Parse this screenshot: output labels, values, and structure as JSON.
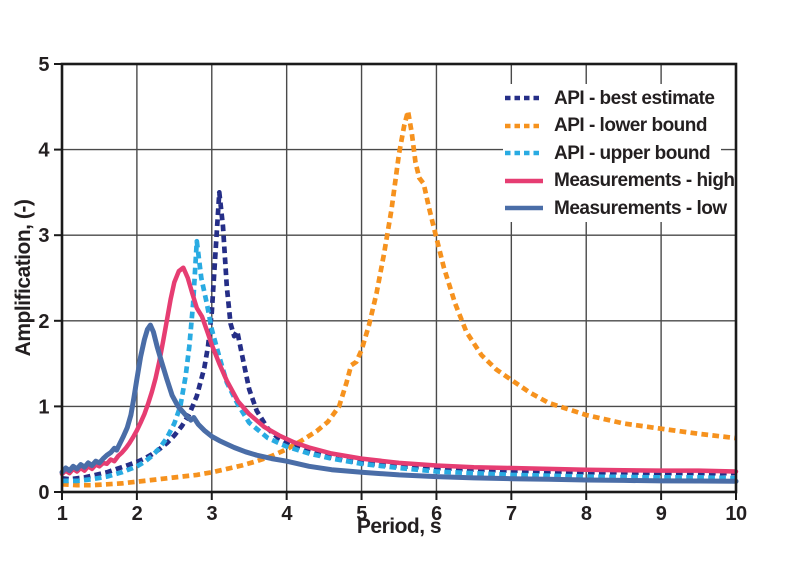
{
  "chart_data": {
    "type": "line",
    "title": "",
    "xlabel": "Period, s",
    "ylabel": "Amplification, (-)",
    "xlim": [
      1,
      10
    ],
    "ylim": [
      0,
      5
    ],
    "xticks": [
      1,
      2,
      3,
      4,
      5,
      6,
      7,
      8,
      9,
      10
    ],
    "yticks": [
      0,
      1,
      2,
      3,
      4,
      5
    ],
    "grid": true,
    "legend_position": "upper-right",
    "frame_color": "#1a1a1a",
    "grid_color": "#4a4a4a",
    "text_color": "#231f20",
    "series": [
      {
        "name": "API - best estimate",
        "color": "#252e87",
        "line_style": "dashed",
        "dash": "6.7 4.3",
        "legend_dash": "5.5 4",
        "width": 4.7,
        "points": [
          [
            1,
            0.16
          ],
          [
            1.1,
            0.15
          ],
          [
            1.2,
            0.16
          ],
          [
            1.3,
            0.17
          ],
          [
            1.4,
            0.19
          ],
          [
            1.5,
            0.21
          ],
          [
            1.6,
            0.23
          ],
          [
            1.7,
            0.26
          ],
          [
            1.8,
            0.29
          ],
          [
            1.9,
            0.32
          ],
          [
            2,
            0.35
          ],
          [
            2.1,
            0.39
          ],
          [
            2.2,
            0.44
          ],
          [
            2.3,
            0.5
          ],
          [
            2.4,
            0.57
          ],
          [
            2.5,
            0.66
          ],
          [
            2.6,
            0.77
          ],
          [
            2.7,
            0.91
          ],
          [
            2.8,
            1.12
          ],
          [
            2.9,
            1.45
          ],
          [
            2.95,
            1.7
          ],
          [
            3,
            2.1
          ],
          [
            3.05,
            2.8
          ],
          [
            3.1,
            3.5
          ],
          [
            3.15,
            3.1
          ],
          [
            3.2,
            2.4
          ],
          [
            3.25,
            1.97
          ],
          [
            3.3,
            1.82
          ],
          [
            3.34,
            1.88
          ],
          [
            3.4,
            1.62
          ],
          [
            3.5,
            1.2
          ],
          [
            3.6,
            0.95
          ],
          [
            3.75,
            0.74
          ],
          [
            3.9,
            0.62
          ],
          [
            4,
            0.57
          ],
          [
            4.25,
            0.48
          ],
          [
            4.5,
            0.42
          ],
          [
            4.75,
            0.37
          ],
          [
            5,
            0.34
          ],
          [
            5.25,
            0.32
          ],
          [
            5.5,
            0.3
          ],
          [
            6,
            0.28
          ],
          [
            6.5,
            0.26
          ],
          [
            7,
            0.25
          ],
          [
            7.5,
            0.24
          ],
          [
            8,
            0.23
          ],
          [
            8.5,
            0.23
          ],
          [
            9,
            0.22
          ],
          [
            9.5,
            0.22
          ],
          [
            10,
            0.22
          ]
        ]
      },
      {
        "name": "API - lower bound",
        "color": "#f6921e",
        "line_style": "dashed",
        "dash": "6.7 4.3",
        "legend_dash": "5.5 4",
        "width": 4.7,
        "points": [
          [
            1,
            0.09
          ],
          [
            1.2,
            0.08
          ],
          [
            1.4,
            0.08
          ],
          [
            1.6,
            0.09
          ],
          [
            1.8,
            0.1
          ],
          [
            2,
            0.12
          ],
          [
            2.2,
            0.14
          ],
          [
            2.4,
            0.16
          ],
          [
            2.6,
            0.18
          ],
          [
            2.8,
            0.2
          ],
          [
            3,
            0.23
          ],
          [
            3.2,
            0.27
          ],
          [
            3.4,
            0.31
          ],
          [
            3.6,
            0.36
          ],
          [
            3.8,
            0.42
          ],
          [
            4,
            0.5
          ],
          [
            4.2,
            0.6
          ],
          [
            4.4,
            0.71
          ],
          [
            4.55,
            0.82
          ],
          [
            4.7,
            1.0
          ],
          [
            4.8,
            1.28
          ],
          [
            4.86,
            1.48
          ],
          [
            4.93,
            1.52
          ],
          [
            5,
            1.66
          ],
          [
            5.1,
            1.95
          ],
          [
            5.2,
            2.32
          ],
          [
            5.3,
            2.78
          ],
          [
            5.4,
            3.3
          ],
          [
            5.5,
            3.95
          ],
          [
            5.57,
            4.28
          ],
          [
            5.62,
            4.45
          ],
          [
            5.67,
            4.2
          ],
          [
            5.72,
            3.85
          ],
          [
            5.77,
            3.67
          ],
          [
            5.83,
            3.6
          ],
          [
            5.9,
            3.32
          ],
          [
            6,
            2.97
          ],
          [
            6.1,
            2.62
          ],
          [
            6.25,
            2.2
          ],
          [
            6.4,
            1.87
          ],
          [
            6.6,
            1.6
          ],
          [
            6.8,
            1.43
          ],
          [
            7,
            1.31
          ],
          [
            7.25,
            1.16
          ],
          [
            7.5,
            1.04
          ],
          [
            7.75,
            0.97
          ],
          [
            8,
            0.9
          ],
          [
            8.5,
            0.8
          ],
          [
            9,
            0.74
          ],
          [
            9.5,
            0.68
          ],
          [
            10,
            0.63
          ]
        ]
      },
      {
        "name": "API - upper bound",
        "color": "#29abe2",
        "line_style": "dashed",
        "dash": "6.7 4.3",
        "legend_dash": "5.5 4",
        "width": 4.7,
        "points": [
          [
            1,
            0.13
          ],
          [
            1.2,
            0.13
          ],
          [
            1.4,
            0.15
          ],
          [
            1.6,
            0.18
          ],
          [
            1.8,
            0.23
          ],
          [
            2,
            0.3
          ],
          [
            2.1,
            0.35
          ],
          [
            2.2,
            0.42
          ],
          [
            2.3,
            0.51
          ],
          [
            2.4,
            0.63
          ],
          [
            2.5,
            0.8
          ],
          [
            2.58,
            1.0
          ],
          [
            2.65,
            1.35
          ],
          [
            2.7,
            1.7
          ],
          [
            2.75,
            2.2
          ],
          [
            2.8,
            2.93
          ],
          [
            2.86,
            2.5
          ],
          [
            2.93,
            2.22
          ],
          [
            3,
            1.9
          ],
          [
            3.1,
            1.58
          ],
          [
            3.2,
            1.28
          ],
          [
            3.35,
            1.02
          ],
          [
            3.5,
            0.81
          ],
          [
            3.75,
            0.63
          ],
          [
            4,
            0.53
          ],
          [
            4.3,
            0.45
          ],
          [
            4.6,
            0.39
          ],
          [
            5,
            0.33
          ],
          [
            5.5,
            0.28
          ],
          [
            6,
            0.24
          ],
          [
            6.5,
            0.22
          ],
          [
            7,
            0.2
          ],
          [
            7.5,
            0.19
          ],
          [
            8,
            0.18
          ],
          [
            8.5,
            0.175
          ],
          [
            9,
            0.17
          ],
          [
            9.5,
            0.17
          ],
          [
            10,
            0.16
          ]
        ]
      },
      {
        "name": "Measurements - high",
        "color": "#e63d72",
        "line_style": "solid",
        "dash": "none",
        "legend_dash": "none",
        "width": 4.5,
        "points": [
          [
            1,
            0.21
          ],
          [
            1.05,
            0.25
          ],
          [
            1.1,
            0.22
          ],
          [
            1.15,
            0.27
          ],
          [
            1.2,
            0.24
          ],
          [
            1.25,
            0.28
          ],
          [
            1.3,
            0.25
          ],
          [
            1.35,
            0.3
          ],
          [
            1.4,
            0.27
          ],
          [
            1.45,
            0.32
          ],
          [
            1.5,
            0.3
          ],
          [
            1.55,
            0.34
          ],
          [
            1.6,
            0.33
          ],
          [
            1.65,
            0.38
          ],
          [
            1.7,
            0.36
          ],
          [
            1.75,
            0.42
          ],
          [
            1.8,
            0.46
          ],
          [
            1.85,
            0.51
          ],
          [
            1.9,
            0.57
          ],
          [
            1.95,
            0.64
          ],
          [
            2,
            0.72
          ],
          [
            2.05,
            0.81
          ],
          [
            2.1,
            0.91
          ],
          [
            2.15,
            1.03
          ],
          [
            2.2,
            1.17
          ],
          [
            2.25,
            1.33
          ],
          [
            2.3,
            1.53
          ],
          [
            2.35,
            1.76
          ],
          [
            2.4,
            2.0
          ],
          [
            2.45,
            2.25
          ],
          [
            2.5,
            2.45
          ],
          [
            2.56,
            2.58
          ],
          [
            2.62,
            2.62
          ],
          [
            2.68,
            2.5
          ],
          [
            2.74,
            2.32
          ],
          [
            2.8,
            2.15
          ],
          [
            2.87,
            2.05
          ],
          [
            2.95,
            1.85
          ],
          [
            3,
            1.72
          ],
          [
            3.1,
            1.5
          ],
          [
            3.2,
            1.3
          ],
          [
            3.35,
            1.06
          ],
          [
            3.5,
            0.91
          ],
          [
            3.7,
            0.76
          ],
          [
            3.9,
            0.66
          ],
          [
            4.1,
            0.58
          ],
          [
            4.3,
            0.52
          ],
          [
            4.6,
            0.45
          ],
          [
            5,
            0.39
          ],
          [
            5.5,
            0.34
          ],
          [
            6,
            0.31
          ],
          [
            6.5,
            0.29
          ],
          [
            7,
            0.28
          ],
          [
            7.5,
            0.27
          ],
          [
            8,
            0.26
          ],
          [
            8.5,
            0.255
          ],
          [
            9,
            0.25
          ],
          [
            9.5,
            0.25
          ],
          [
            10,
            0.24
          ]
        ]
      },
      {
        "name": "Measurements - low",
        "color": "#4a6da7",
        "line_style": "solid",
        "dash": "none",
        "legend_dash": "none",
        "width": 5,
        "points": [
          [
            1,
            0.23
          ],
          [
            1.05,
            0.28
          ],
          [
            1.1,
            0.25
          ],
          [
            1.15,
            0.3
          ],
          [
            1.2,
            0.27
          ],
          [
            1.25,
            0.32
          ],
          [
            1.3,
            0.29
          ],
          [
            1.35,
            0.34
          ],
          [
            1.4,
            0.31
          ],
          [
            1.45,
            0.36
          ],
          [
            1.5,
            0.34
          ],
          [
            1.55,
            0.39
          ],
          [
            1.6,
            0.43
          ],
          [
            1.65,
            0.46
          ],
          [
            1.7,
            0.51
          ],
          [
            1.73,
            0.49
          ],
          [
            1.78,
            0.58
          ],
          [
            1.82,
            0.65
          ],
          [
            1.87,
            0.75
          ],
          [
            1.92,
            0.9
          ],
          [
            1.96,
            1.1
          ],
          [
            2,
            1.32
          ],
          [
            2.05,
            1.58
          ],
          [
            2.1,
            1.78
          ],
          [
            2.14,
            1.9
          ],
          [
            2.18,
            1.95
          ],
          [
            2.22,
            1.87
          ],
          [
            2.27,
            1.7
          ],
          [
            2.33,
            1.52
          ],
          [
            2.4,
            1.32
          ],
          [
            2.47,
            1.13
          ],
          [
            2.55,
            1.0
          ],
          [
            2.65,
            0.9
          ],
          [
            2.72,
            0.84
          ],
          [
            2.76,
            0.87
          ],
          [
            2.82,
            0.79
          ],
          [
            2.9,
            0.72
          ],
          [
            3,
            0.65
          ],
          [
            3.1,
            0.6
          ],
          [
            3.2,
            0.56
          ],
          [
            3.3,
            0.52
          ],
          [
            3.45,
            0.47
          ],
          [
            3.6,
            0.43
          ],
          [
            3.8,
            0.39
          ],
          [
            4,
            0.36
          ],
          [
            4.3,
            0.3
          ],
          [
            4.6,
            0.26
          ],
          [
            5,
            0.23
          ],
          [
            5.5,
            0.2
          ],
          [
            6,
            0.18
          ],
          [
            6.5,
            0.165
          ],
          [
            7,
            0.155
          ],
          [
            7.5,
            0.148
          ],
          [
            8,
            0.14
          ],
          [
            8.5,
            0.135
          ],
          [
            9,
            0.13
          ],
          [
            9.5,
            0.128
          ],
          [
            10,
            0.125
          ]
        ]
      }
    ]
  }
}
